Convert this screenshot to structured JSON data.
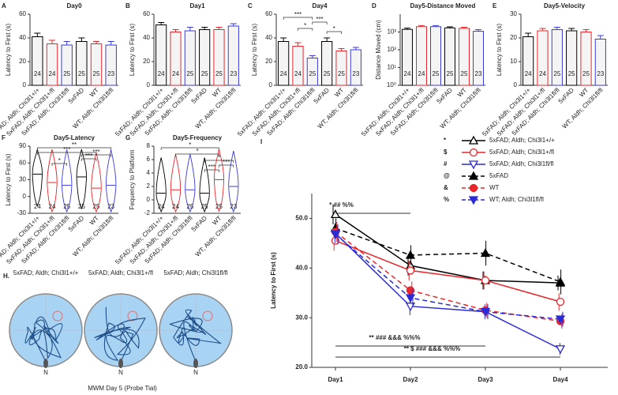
{
  "chart_data": [
    {
      "type": "bar",
      "label": "A",
      "title": "Day0",
      "ylabel": "Latency to First (s)",
      "categories": [
        "5xFAD; Aldh; Chi3l1+/+",
        "5xFAD; Aldh; Chi3l1+/fl",
        "5xFAD; Aldh; Chi3l1fl/fl",
        "5xFAD",
        "WT",
        "WT; Aldh; Chi3l1fl/fl"
      ],
      "values": [
        41,
        35,
        34,
        37,
        35,
        34
      ],
      "errors": [
        3,
        3,
        3,
        3,
        2,
        3
      ],
      "n_labels": [
        24,
        24,
        25,
        25,
        25,
        23
      ],
      "colors": [
        "#000000",
        "#e8262b",
        "#3a3ad6",
        "#000000",
        "#e8262b",
        "#3a3ad6"
      ],
      "ylim": [
        0,
        60
      ],
      "yticks": [
        0,
        20,
        40,
        60
      ]
    },
    {
      "type": "bar",
      "label": "B",
      "title": "Day1",
      "ylabel": "Latency to First (s)",
      "categories": [
        "5xFAD; Aldh; Chi3l1+/+",
        "5xFAD; Aldh; Chi3l1+/fl",
        "5xFAD; Aldh; Chi3l1fl/fl",
        "5xFAD",
        "WT",
        "WT; Aldh; Chi3l1fl/fl"
      ],
      "values": [
        51,
        45,
        46,
        47,
        47,
        50
      ],
      "errors": [
        2,
        2,
        3,
        2,
        2,
        2
      ],
      "n_labels": [
        24,
        24,
        25,
        25,
        25,
        23
      ],
      "colors": [
        "#000000",
        "#e8262b",
        "#3a3ad6",
        "#000000",
        "#e8262b",
        "#3a3ad6"
      ],
      "ylim": [
        0,
        60
      ],
      "yticks": [
        0,
        20,
        40,
        60
      ]
    },
    {
      "type": "bar",
      "label": "C",
      "title": "Day4",
      "ylabel": "Latency to First (s)",
      "categories": [
        "5xFAD; Aldh; Chi3l1+/+",
        "5xFAD; Aldh; Chi3l1+/fl",
        "5xFAD; Aldh; Chi3l1fl/fl",
        "5xFAD",
        "WT",
        "WT; Aldh; Chi3l1fl/fl"
      ],
      "values": [
        37,
        33,
        23,
        37,
        29,
        30
      ],
      "errors": [
        3,
        3,
        2,
        3,
        2,
        2
      ],
      "n_labels": [
        24,
        24,
        25,
        25,
        25,
        23
      ],
      "colors": [
        "#000000",
        "#e8262b",
        "#3a3ad6",
        "#000000",
        "#e8262b",
        "#3a3ad6"
      ],
      "ylim": [
        0,
        60
      ],
      "yticks": [
        0,
        20,
        40,
        60
      ],
      "annotations": [
        "***",
        "*",
        "***",
        "*"
      ]
    },
    {
      "type": "bar",
      "label": "D",
      "title": "Day5-Distance Moved",
      "ylabel": "Distance Moved (cm)",
      "log_scale": true,
      "categories": [
        "5xFAD; Aldh; Chi3l1+/+",
        "5xFAD; Aldh; Chi3l1+/fl",
        "5xFAD; Aldh; Chi3l1fl/fl",
        "5xFAD",
        "WT",
        "WT; Aldh; Chi3l1fl/fl"
      ],
      "values": [
        1400,
        2000,
        2000,
        1700,
        1600,
        1100
      ],
      "errors": [
        250,
        300,
        300,
        250,
        250,
        250
      ],
      "n_labels": [
        24,
        24,
        25,
        25,
        25,
        23
      ],
      "colors": [
        "#000000",
        "#e8262b",
        "#3a3ad6",
        "#000000",
        "#e8262b",
        "#3a3ad6"
      ],
      "ylim": [
        1,
        10000
      ],
      "yticks": [
        {
          "value": 1,
          "label": "10⁰"
        },
        {
          "value": 10,
          "label": "10¹"
        },
        {
          "value": 100,
          "label": "10²"
        },
        {
          "value": 1000,
          "label": "10³"
        }
      ]
    },
    {
      "type": "bar",
      "label": "E",
      "title": "Day5-Velocity",
      "ylabel": "Latency to First (s)",
      "categories": [
        "5xFAD; Aldh; Chi3l1+/+",
        "5xFAD; Aldh; Chi3l1+/fl",
        "5xFAD; Aldh; Chi3l1fl/fl",
        "5xFAD",
        "WT",
        "WT; Aldh; Chi3l1fl/fl"
      ],
      "values": [
        20.5,
        23,
        23.5,
        23,
        22.5,
        19.5
      ],
      "errors": [
        1.5,
        1,
        1,
        1,
        1,
        1.5
      ],
      "n_labels": [
        24,
        24,
        25,
        25,
        25,
        23
      ],
      "colors": [
        "#000000",
        "#e8262b",
        "#3a3ad6",
        "#000000",
        "#e8262b",
        "#3a3ad6"
      ],
      "ylim": [
        0,
        30
      ],
      "yticks": [
        0,
        10,
        20,
        30
      ]
    },
    {
      "type": "violin",
      "label": "F",
      "title": "Day5-Latency",
      "ylabel": "Latency to First (s)",
      "categories": [
        "5xFAD; Aldh; Chi3l1+/+",
        "5xFAD; Aldh; Chi3l1+/fl",
        "5xFAD; Aldh; Chi3l1fl/fl",
        "5xFAD",
        "WT",
        "WT; Aldh; Chi3l1fl/fl"
      ],
      "medians": [
        40,
        25,
        20,
        35,
        15,
        20
      ],
      "n_labels": [
        24,
        24,
        25,
        25,
        25,
        23
      ],
      "colors": [
        "#000000",
        "#e8262b",
        "#3a3ad6",
        "#000000",
        "#e8262b",
        "#3a3ad6"
      ],
      "ylim": [
        -30,
        90
      ],
      "yticks": [
        -30,
        0,
        30,
        60,
        90
      ],
      "annotations": [
        "**",
        "***",
        "*",
        "***",
        "***"
      ]
    },
    {
      "type": "violin",
      "label": "G",
      "title": "Day5-Frequency",
      "ylabel": "Fequency to Platform",
      "categories": [
        "5xFAD; Aldh; Chi3l1+/+",
        "5xFAD; Aldh; Chi3l1+/fl",
        "5xFAD; Aldh; Chi3l1fl/fl",
        "5xFAD",
        "WT",
        "WT; Aldh; Chi3l1fl/fl"
      ],
      "medians": [
        1,
        1.5,
        1.5,
        1,
        3,
        2
      ],
      "n_labels": [
        24,
        24,
        25,
        25,
        25,
        23
      ],
      "colors": [
        "#000000",
        "#e8262b",
        "#3a3ad6",
        "#000000",
        "#e8262b",
        "#3a3ad6"
      ],
      "ylim": [
        -2,
        8
      ],
      "yticks": [
        -2,
        0,
        2,
        4,
        6,
        8
      ],
      "annotations": [
        "*",
        "*",
        "*",
        "***",
        "***"
      ]
    },
    {
      "type": "line",
      "label": "I",
      "ylabel": "Latency to First (s)",
      "categories": [
        "Day1",
        "Day2",
        "Day3",
        "Day4"
      ],
      "ylim": [
        20,
        55
      ],
      "yticks": [
        {
          "value": 20,
          "label": "20.0"
        },
        {
          "value": 30,
          "label": "30.0"
        },
        {
          "value": 40,
          "label": "40.0"
        },
        {
          "value": 50,
          "label": "50.0"
        }
      ],
      "series": [
        {
          "name": "5xFAD; Aldh; Chi3l1+/+",
          "symbol": "*",
          "color": "#000000",
          "marker": "triangle",
          "filled": false,
          "dashed": false,
          "values": [
            50.8,
            40.5,
            37.5,
            37.0
          ],
          "errors": [
            2,
            2,
            1.8,
            1.5
          ]
        },
        {
          "name": "5xFAD; Aldh; Chi3l1+/fl",
          "symbol": "$",
          "color": "#e8262b",
          "marker": "circle",
          "filled": false,
          "dashed": false,
          "values": [
            45.5,
            39.5,
            37.5,
            33.2
          ],
          "errors": [
            2,
            2,
            1.8,
            1.8
          ]
        },
        {
          "name": "5xFAD; Aldh; Chi3l1fl/fl",
          "symbol": "#",
          "color": "#2a2ad6",
          "marker": "triangle-down",
          "filled": false,
          "dashed": false,
          "values": [
            47.0,
            32.3,
            31.2,
            23.7
          ],
          "errors": [
            2,
            1.8,
            1.5,
            1.2
          ]
        },
        {
          "name": "5xFAD",
          "symbol": "@",
          "color": "#000000",
          "marker": "triangle",
          "filled": true,
          "dashed": true,
          "values": [
            48.0,
            42.6,
            43.0,
            37.2
          ],
          "errors": [
            2,
            2,
            2.5,
            2.5
          ]
        },
        {
          "name": "WT",
          "symbol": "&",
          "color": "#e8262b",
          "marker": "circle",
          "filled": true,
          "dashed": true,
          "values": [
            47.3,
            35.5,
            31.5,
            29.3
          ],
          "errors": [
            2,
            1.8,
            1.5,
            1.5
          ]
        },
        {
          "name": "WT; Aldh; Chi3l1fl/fl",
          "symbol": "%",
          "color": "#2a2ad6",
          "marker": "triangle-down",
          "filled": true,
          "dashed": true,
          "values": [
            46.8,
            34.0,
            31.2,
            29.7
          ],
          "errors": [
            2,
            1.8,
            1.5,
            1.5
          ]
        }
      ],
      "annotations": [
        "* ## %%",
        "** ### &&& %%%",
        "** $ ### &&& %%%"
      ]
    }
  ],
  "panel_h": {
    "label": "H.",
    "groups": [
      "5xFAD; Aldh; Chi3l1+/+",
      "5xFAD; Aldh; Chi3l1+/fl",
      "5xFAD; Aldh; Chi3l1fl/fl"
    ],
    "north": "N",
    "caption": "MWM   Day 5 (Probe Tial)"
  }
}
